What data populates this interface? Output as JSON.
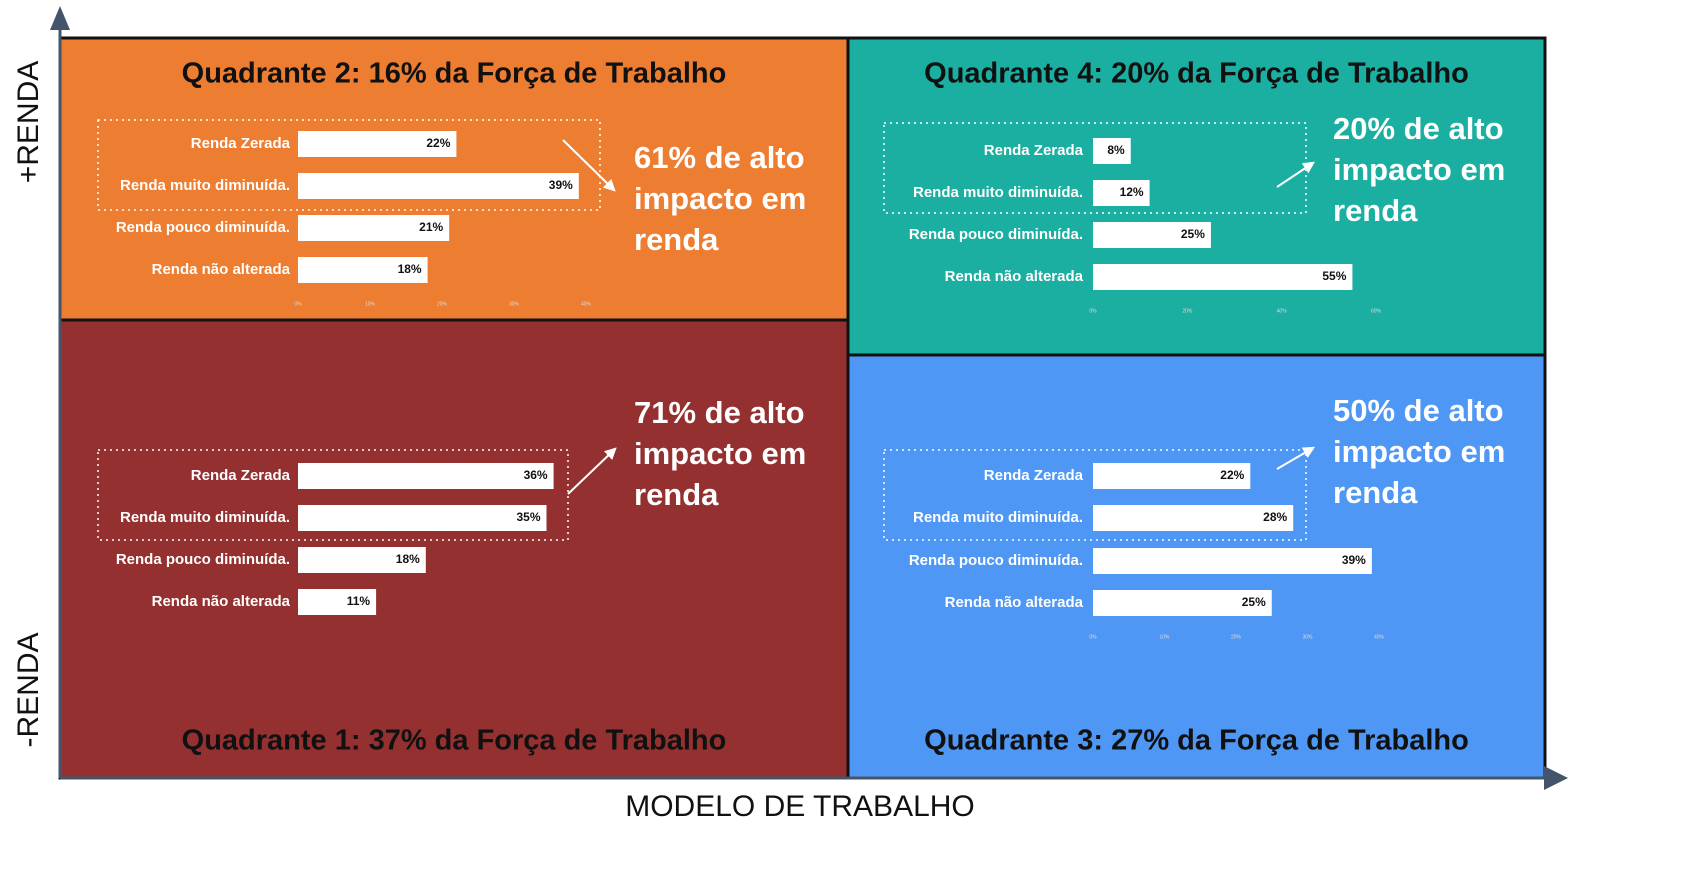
{
  "axes": {
    "y_top": "+RENDA",
    "y_bottom": "-RENDA",
    "x": "MODELO DE TRABALHO"
  },
  "chart_data": [
    {
      "type": "bar",
      "title": "Quadrante 1: 37% da Força de Trabalho",
      "background": "#943030",
      "color": "#ffffff",
      "categories": [
        "Renda Zerada",
        "Renda muito diminuída.",
        "Renda pouco diminuída.",
        "Renda não alterada"
      ],
      "values": [
        36,
        35,
        18,
        11
      ],
      "value_labels": [
        "36%",
        "35%",
        "18%",
        "11%"
      ],
      "xlim": [
        0,
        40
      ],
      "annotation": [
        "71% de alto",
        "impacto em",
        "renda"
      ]
    },
    {
      "type": "bar",
      "title": "Quadrante 2: 16% da Força de Trabalho",
      "background": "#ED7D31",
      "color": "#ffffff",
      "categories": [
        "Renda Zerada",
        "Renda muito diminuída.",
        "Renda pouco diminuída.",
        "Renda não alterada"
      ],
      "values": [
        22,
        39,
        21,
        18
      ],
      "value_labels": [
        "22%",
        "39%",
        "21%",
        "18%"
      ],
      "xlim": [
        0,
        40
      ],
      "xticks": [
        {
          "value": 0,
          "label": "0%"
        },
        {
          "value": 10,
          "label": "10%"
        },
        {
          "value": 20,
          "label": "20%"
        },
        {
          "value": 30,
          "label": "30%"
        },
        {
          "value": 40,
          "label": "40%"
        }
      ],
      "annotation": [
        "61% de alto",
        "impacto em",
        "renda"
      ]
    },
    {
      "type": "bar",
      "title": "Quadrante 3: 27% da Força de Trabalho",
      "background": "#4F97F5",
      "color": "#ffffff",
      "categories": [
        "Renda Zerada",
        "Renda muito diminuída.",
        "Renda pouco diminuída.",
        "Renda não alterada"
      ],
      "values": [
        22,
        28,
        39,
        25
      ],
      "value_labels": [
        "22%",
        "28%",
        "39%",
        "25%"
      ],
      "xlim": [
        0,
        40
      ],
      "xticks": [
        {
          "value": 0,
          "label": "0%"
        },
        {
          "value": 10,
          "label": "10%"
        },
        {
          "value": 20,
          "label": "20%"
        },
        {
          "value": 30,
          "label": "30%"
        },
        {
          "value": 40,
          "label": "40%"
        }
      ],
      "annotation": [
        "50% de alto",
        "impacto em",
        "renda"
      ]
    },
    {
      "type": "bar",
      "title": "Quadrante 4: 20% da Força de Trabalho",
      "background": "#1AAFA0",
      "color": "#ffffff",
      "categories": [
        "Renda Zerada",
        "Renda muito diminuída.",
        "Renda pouco diminuída.",
        "Renda não alterada"
      ],
      "values": [
        8,
        12,
        25,
        55
      ],
      "value_labels": [
        "8%",
        "12%",
        "25%",
        "55%"
      ],
      "xlim": [
        0,
        60
      ],
      "xticks": [
        {
          "value": 0,
          "label": "0%"
        },
        {
          "value": 20,
          "label": "20%"
        },
        {
          "value": 40,
          "label": "40%"
        },
        {
          "value": 60,
          "label": "60%"
        }
      ],
      "annotation": [
        "20% de alto",
        "impacto em",
        "renda"
      ]
    }
  ]
}
